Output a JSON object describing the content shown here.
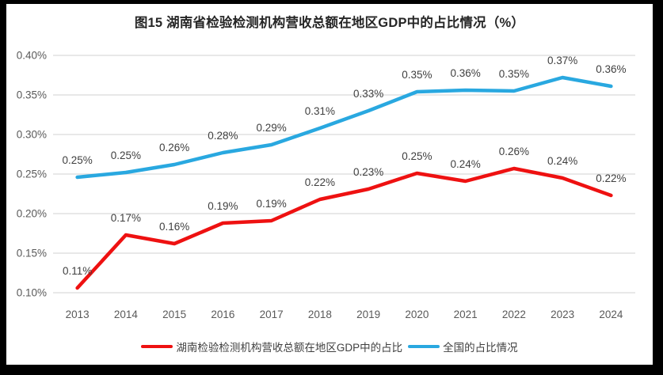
{
  "frame": {
    "border_color": "#000000",
    "background": "#ffffff"
  },
  "chart_data": {
    "type": "line",
    "title": "图15 湖南省检验检测机构营收总额在地区GDP中的占比情况（%）",
    "categories": [
      "2013",
      "2014",
      "2015",
      "2016",
      "2017",
      "2018",
      "2019",
      "2020",
      "2021",
      "2022",
      "2023",
      "2024"
    ],
    "y_axis": {
      "tick_labels": [
        "0.40%",
        "0.35%",
        "0.30%",
        "0.25%",
        "0.20%",
        "0.15%",
        "0.10%"
      ],
      "min": 0.1,
      "max": 0.4,
      "step": 0.05,
      "unit": "%"
    },
    "grid": true,
    "legend_position": "bottom",
    "series": [
      {
        "name": "湖南检验检测机构营收总额在地区GDP中的占比",
        "color": "#ee1111",
        "labels": [
          "0.11%",
          "0.17%",
          "0.16%",
          "0.19%",
          "0.19%",
          "0.22%",
          "0.23%",
          "0.25%",
          "0.24%",
          "0.26%",
          "0.24%",
          "0.22%"
        ],
        "values": [
          0.106,
          0.173,
          0.162,
          0.188,
          0.191,
          0.218,
          0.231,
          0.251,
          0.241,
          0.257,
          0.245,
          0.223
        ]
      },
      {
        "name": "全国的占比情况",
        "color": "#29a8e0",
        "labels": [
          "0.25%",
          "0.25%",
          "0.26%",
          "0.28%",
          "0.29%",
          "0.31%",
          "0.33%",
          "0.35%",
          "0.36%",
          "0.35%",
          "0.37%",
          "0.36%"
        ],
        "values": [
          0.246,
          0.252,
          0.262,
          0.277,
          0.287,
          0.308,
          0.33,
          0.354,
          0.356,
          0.355,
          0.372,
          0.361
        ]
      }
    ],
    "colors": {
      "gridline": "#d9d9d9",
      "axis_text": "#595959",
      "data_label_text": "#3f3f3f"
    }
  }
}
